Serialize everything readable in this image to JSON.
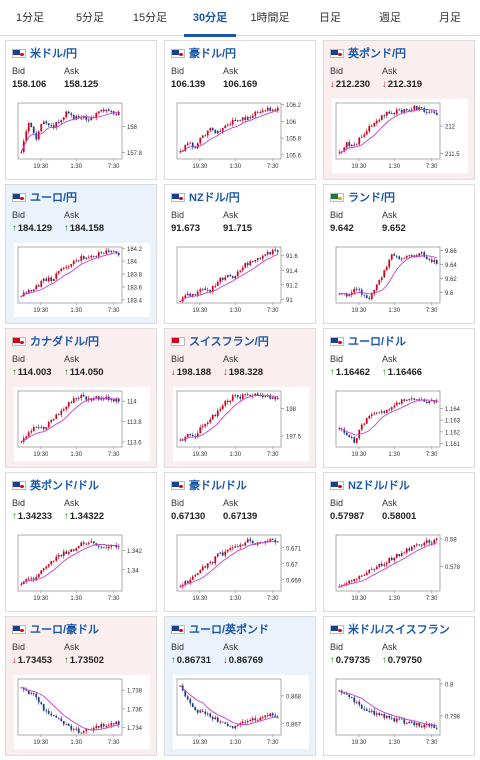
{
  "tabs": [
    {
      "label": "1分足",
      "active": false
    },
    {
      "label": "5分足",
      "active": false
    },
    {
      "label": "15分足",
      "active": false
    },
    {
      "label": "30分足",
      "active": true
    },
    {
      "label": "1時間足",
      "active": false
    },
    {
      "label": "日足",
      "active": false
    },
    {
      "label": "週足",
      "active": false
    },
    {
      "label": "月足",
      "active": false
    }
  ],
  "bid_label": "Bid",
  "ask_label": "Ask",
  "colors": {
    "bullish": "#d0021b",
    "bearish": "#1b3f8b",
    "moving_average": "#c43fd4",
    "up_arrow": "#1a8a2a",
    "down_arrow": "#d0021b",
    "active_tab": "#1a56a8"
  },
  "cards": [
    {
      "pair": "米ドル/円",
      "bid": "158.106",
      "ask": "158.125",
      "bid_arrow": "",
      "ask_arrow": "",
      "bg": "white",
      "flag": [
        "#1b3f8b",
        "#d0021b"
      ],
      "trend": [
        157.82,
        158.02,
        157.91,
        158.05,
        158.0,
        158.03,
        158.1,
        158.06,
        158.08,
        158.04,
        158.1,
        158.13,
        158.11,
        158.1
      ]
    },
    {
      "pair": "豪ドル/円",
      "bid": "106.139",
      "ask": "106.169",
      "bid_arrow": "",
      "ask_arrow": "",
      "bg": "white",
      "flag": [
        "#1b3f8b",
        "#d0021b"
      ],
      "trend": [
        105.62,
        105.73,
        105.7,
        105.82,
        105.9,
        105.86,
        105.95,
        106.0,
        106.02,
        106.05,
        106.1,
        106.13,
        106.15,
        106.14
      ]
    },
    {
      "pair": "英ポンド/円",
      "bid": "212.230",
      "ask": "212.319",
      "bid_arrow": "down",
      "ask_arrow": "down",
      "bg": "red",
      "flag": [
        "#1b3f8b",
        "#d0021b"
      ],
      "trend": [
        211.5,
        211.7,
        211.62,
        211.82,
        211.96,
        212.1,
        212.22,
        212.25,
        212.28,
        212.3,
        212.33,
        212.3,
        212.27,
        212.24
      ]
    },
    {
      "pair": "ユーロ/円",
      "bid": "184.129",
      "ask": "184.158",
      "bid_arrow": "up",
      "ask_arrow": "up",
      "bg": "blue",
      "flag": [
        "#1b3f8b",
        "#d0021b"
      ],
      "trend": [
        183.45,
        183.55,
        183.6,
        183.7,
        183.72,
        183.82,
        183.9,
        183.98,
        184.05,
        184.08,
        184.1,
        184.14,
        184.15,
        184.12
      ]
    },
    {
      "pair": "NZドル/円",
      "bid": "91.673",
      "ask": "91.715",
      "bid_arrow": "",
      "ask_arrow": "",
      "bg": "white",
      "flag": [
        "#1b3f8b",
        "#d0021b"
      ],
      "trend": [
        90.98,
        91.08,
        91.05,
        91.15,
        91.12,
        91.25,
        91.32,
        91.3,
        91.42,
        91.5,
        91.55,
        91.6,
        91.65,
        91.67
      ]
    },
    {
      "pair": "ランド/円",
      "bid": "9.642",
      "ask": "9.652",
      "bid_arrow": "",
      "ask_arrow": "",
      "bg": "white",
      "flag": [
        "#1a7a3a",
        "#e0a800"
      ],
      "trend": [
        9.6,
        9.595,
        9.605,
        9.6,
        9.592,
        9.61,
        9.63,
        9.652,
        9.648,
        9.65,
        9.653,
        9.655,
        9.648,
        9.642
      ]
    },
    {
      "pair": "カナダドル/円",
      "bid": "114.003",
      "ask": "114.050",
      "bid_arrow": "up",
      "ask_arrow": "up",
      "bg": "red",
      "flag": [
        "#d0021b",
        "#d0021b"
      ],
      "trend": [
        113.62,
        113.7,
        113.75,
        113.72,
        113.82,
        113.88,
        113.95,
        114.03,
        114.05,
        114.02,
        114.04,
        114.03,
        114.01,
        114.0
      ]
    },
    {
      "pair": "スイスフラン/円",
      "bid": "198.188",
      "ask": "198.328",
      "bid_arrow": "down",
      "ask_arrow": "down",
      "bg": "red",
      "flag": [
        "#d0021b",
        "#ffffff"
      ],
      "trend": [
        197.4,
        197.55,
        197.5,
        197.7,
        197.8,
        197.95,
        198.1,
        198.2,
        198.22,
        198.25,
        198.24,
        198.2,
        198.22,
        198.19
      ]
    },
    {
      "pair": "ユーロ/ドル",
      "bid": "1.16462",
      "ask": "1.16466",
      "bid_arrow": "up",
      "ask_arrow": "up",
      "bg": "white",
      "flag": [
        "#1b3f8b",
        "#d0021b"
      ],
      "trend": [
        1.1622,
        1.1618,
        1.1612,
        1.1625,
        1.1633,
        1.1638,
        1.1636,
        1.1641,
        1.1645,
        1.1648,
        1.1649,
        1.1646,
        1.1647,
        1.1646
      ]
    },
    {
      "pair": "英ポンド/ドル",
      "bid": "1.34233",
      "ask": "1.34322",
      "bid_arrow": "up",
      "ask_arrow": "up",
      "bg": "white",
      "flag": [
        "#1b3f8b",
        "#d0021b"
      ],
      "trend": [
        1.3385,
        1.3392,
        1.339,
        1.3402,
        1.3408,
        1.3415,
        1.3418,
        1.3422,
        1.3428,
        1.343,
        1.3426,
        1.3424,
        1.3425,
        1.3423
      ]
    },
    {
      "pair": "豪ドル/ドル",
      "bid": "0.67130",
      "ask": "0.67139",
      "bid_arrow": "",
      "ask_arrow": "",
      "bg": "white",
      "flag": [
        "#1b3f8b",
        "#d0021b"
      ],
      "trend": [
        0.6686,
        0.6689,
        0.6692,
        0.6697,
        0.67,
        0.6705,
        0.6707,
        0.671,
        0.6711,
        0.6714,
        0.6712,
        0.6713,
        0.6714,
        0.6713
      ]
    },
    {
      "pair": "NZドル/ドル",
      "bid": "0.57987",
      "ask": "0.58001",
      "bid_arrow": "",
      "ask_arrow": "",
      "bg": "white",
      "flag": [
        "#1b3f8b",
        "#d0021b"
      ],
      "trend": [
        0.5766,
        0.5769,
        0.577,
        0.5773,
        0.5776,
        0.578,
        0.5782,
        0.5786,
        0.5789,
        0.5792,
        0.5795,
        0.5797,
        0.5798,
        0.5799
      ]
    },
    {
      "pair": "ユーロ/豪ドル",
      "bid": "1.73453",
      "ask": "1.73502",
      "bid_arrow": "down",
      "ask_arrow": "up",
      "bg": "red",
      "flag": [
        "#1b3f8b",
        "#d0021b"
      ],
      "trend": [
        1.7385,
        1.7378,
        1.7372,
        1.736,
        1.7355,
        1.7348,
        1.7342,
        1.7338,
        1.7335,
        1.7337,
        1.734,
        1.7342,
        1.7344,
        1.7345
      ]
    },
    {
      "pair": "ユーロ/英ポンド",
      "bid": "0.86731",
      "ask": "0.86769",
      "bid_arrow": "up",
      "ask_arrow": "down",
      "bg": "blue",
      "flag": [
        "#1b3f8b",
        "#d0021b"
      ],
      "trend": [
        0.8683,
        0.8678,
        0.8675,
        0.8674,
        0.8673,
        0.8671,
        0.867,
        0.8669,
        0.867,
        0.8671,
        0.8672,
        0.8672,
        0.8673,
        0.8673
      ]
    },
    {
      "pair": "米ドル/スイスフラン",
      "bid": "0.79735",
      "ask": "0.79750",
      "bid_arrow": "up",
      "ask_arrow": "up",
      "bg": "white",
      "flag": [
        "#1b3f8b",
        "#d0021b"
      ],
      "trend": [
        0.7995,
        0.7992,
        0.7989,
        0.7985,
        0.7983,
        0.7981,
        0.798,
        0.7978,
        0.7977,
        0.7976,
        0.7975,
        0.7974,
        0.7974,
        0.7973
      ]
    }
  ],
  "chart_data": [
    {
      "type": "candlestick",
      "title": "米ドル/円",
      "x_ticks": [
        "19:30",
        "1:30",
        "7:30"
      ],
      "y_ticks": [
        "158",
        "157.8"
      ],
      "ylim": [
        157.75,
        158.18
      ]
    },
    {
      "type": "candlestick",
      "title": "豪ドル/円",
      "x_ticks": [
        "19:30",
        "1:30",
        "7:30"
      ],
      "y_ticks": [
        "106.2",
        "106",
        "105.8",
        "105.6"
      ],
      "ylim": [
        105.55,
        106.22
      ]
    },
    {
      "type": "candlestick",
      "title": "英ポンド/円",
      "x_ticks": [
        "19:30",
        "1:30",
        "7:30"
      ],
      "y_ticks": [
        "212",
        "211.5"
      ],
      "ylim": [
        211.4,
        212.42
      ]
    },
    {
      "type": "candlestick",
      "title": "ユーロ/円",
      "x_ticks": [
        "19:30",
        "1:30",
        "7:30"
      ],
      "y_ticks": [
        "184.2",
        "184",
        "183.8",
        "183.6",
        "183.4"
      ],
      "ylim": [
        183.35,
        184.22
      ]
    },
    {
      "type": "candlestick",
      "title": "NZドル/円",
      "x_ticks": [
        "19:30",
        "1:30",
        "7:30"
      ],
      "y_ticks": [
        "91.6",
        "91.4",
        "91.2",
        "91"
      ],
      "ylim": [
        90.95,
        91.72
      ]
    },
    {
      "type": "candlestick",
      "title": "ランド/円",
      "x_ticks": [
        "19:30",
        "1:30",
        "7:30"
      ],
      "y_ticks": [
        "9.66",
        "9.64",
        "9.62",
        "9.6"
      ],
      "ylim": [
        9.585,
        9.665
      ]
    },
    {
      "type": "candlestick",
      "title": "カナダドル/円",
      "x_ticks": [
        "19:30",
        "1:30",
        "7:30"
      ],
      "y_ticks": [
        "114",
        "113.8",
        "113.6"
      ],
      "ylim": [
        113.55,
        114.1
      ]
    },
    {
      "type": "candlestick",
      "title": "スイスフラン/円",
      "x_ticks": [
        "19:30",
        "1:30",
        "7:30"
      ],
      "y_ticks": [
        "198",
        "197.5"
      ],
      "ylim": [
        197.3,
        198.32
      ]
    },
    {
      "type": "candlestick",
      "title": "ユーロ/ドル",
      "x_ticks": [
        "19:30",
        "1:30",
        "7:30"
      ],
      "y_ticks": [
        "1.164",
        "1.163",
        "1.162",
        "1.161"
      ],
      "ylim": [
        1.1607,
        1.1655
      ]
    },
    {
      "type": "candlestick",
      "title": "英ポンド/ドル",
      "x_ticks": [
        "19:30",
        "1:30",
        "7:30"
      ],
      "y_ticks": [
        "1.342",
        "1.34"
      ],
      "ylim": [
        1.3378,
        1.3436
      ]
    },
    {
      "type": "candlestick",
      "title": "豪ドル/ドル",
      "x_ticks": [
        "19:30",
        "1:30",
        "7:30"
      ],
      "y_ticks": [
        "0.671",
        "0.67",
        "0.669"
      ],
      "ylim": [
        0.6683,
        0.6718
      ]
    },
    {
      "type": "candlestick",
      "title": "NZドル/ドル",
      "x_ticks": [
        "19:30",
        "1:30",
        "7:30"
      ],
      "y_ticks": [
        "0.58",
        "0.578"
      ],
      "ylim": [
        0.5762,
        0.5803
      ]
    },
    {
      "type": "candlestick",
      "title": "ユーロ/豪ドル",
      "x_ticks": [
        "19:30",
        "1:30",
        "7:30"
      ],
      "y_ticks": [
        "1.738",
        "1.736",
        "1.734"
      ],
      "ylim": [
        1.7332,
        1.7392
      ]
    },
    {
      "type": "candlestick",
      "title": "ユーロ/英ポンド",
      "x_ticks": [
        "19:30",
        "1:30",
        "7:30"
      ],
      "y_ticks": [
        "0.868",
        "0.867"
      ],
      "ylim": [
        0.8666,
        0.8686
      ]
    },
    {
      "type": "candlestick",
      "title": "米ドル/スイスフラン",
      "x_ticks": [
        "19:30",
        "1:30",
        "7:30"
      ],
      "y_ticks": [
        "0.8",
        "0.798"
      ],
      "ylim": [
        0.7968,
        0.8003
      ]
    }
  ]
}
